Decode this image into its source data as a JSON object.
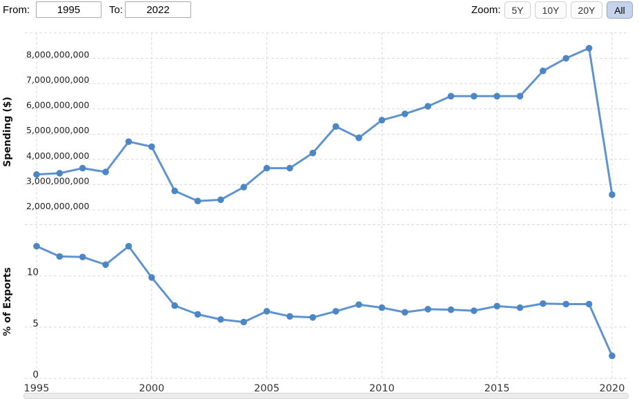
{
  "header": {
    "from_label": "From:",
    "from_value": "1995",
    "to_label": "To:",
    "to_value": "2022",
    "zoom_label": "Zoom:",
    "zoom_buttons": [
      {
        "label": "5Y",
        "active": false
      },
      {
        "label": "10Y",
        "active": false
      },
      {
        "label": "20Y",
        "active": false
      },
      {
        "label": "All",
        "active": true
      }
    ],
    "active_button_color": "#c6d3ec"
  },
  "chart_data": [
    {
      "type": "line",
      "ylabel": "Spending ($)",
      "series_name": "Spending ($)",
      "x": [
        1995,
        1996,
        1997,
        1998,
        1999,
        2000,
        2001,
        2002,
        2003,
        2004,
        2005,
        2006,
        2007,
        2008,
        2009,
        2010,
        2011,
        2012,
        2013,
        2014,
        2015,
        2016,
        2017,
        2018,
        2019,
        2020
      ],
      "values": [
        3400000000,
        3450000000,
        3650000000,
        3500000000,
        4700000000,
        4500000000,
        2750000000,
        2350000000,
        2400000000,
        2900000000,
        3650000000,
        3650000000,
        4250000000,
        5300000000,
        4850000000,
        5550000000,
        5800000000,
        6100000000,
        6500000000,
        6500000000,
        6500000000,
        6500000000,
        7500000000,
        8000000000,
        8400000000,
        2600000000
      ],
      "ygrid_values": [
        2000000000,
        3000000000,
        4000000000,
        5000000000,
        6000000000,
        7000000000,
        8000000000,
        9000000000
      ],
      "ytick_labels": [
        "2,000,000,000",
        "3,000,000,000",
        "4,000,000,000",
        "5,000,000,000",
        "6,000,000,000",
        "7,000,000,000",
        "8,000,000,000",
        ""
      ],
      "xtick_values": [
        1995,
        2000,
        2005,
        2010,
        2015,
        2020
      ],
      "xtick_labels": [
        "1995",
        "2000",
        "2005",
        "2010",
        "2015",
        "2020"
      ],
      "xlim": [
        1995,
        2020
      ],
      "ylim": [
        1700000000,
        9050000000
      ],
      "grid": "dashed",
      "legend": "none",
      "line_color": "#5e93cf",
      "marker_color": "#4c86c5"
    },
    {
      "type": "line",
      "ylabel": "% of Exports",
      "series_name": "% of Exports",
      "x": [
        1995,
        1996,
        1997,
        1998,
        1999,
        2000,
        2001,
        2002,
        2003,
        2004,
        2005,
        2006,
        2007,
        2008,
        2009,
        2010,
        2011,
        2012,
        2013,
        2014,
        2015,
        2016,
        2017,
        2018,
        2019,
        2020
      ],
      "values": [
        12.9,
        11.9,
        11.85,
        11.1,
        12.9,
        9.85,
        7.1,
        6.25,
        5.75,
        5.5,
        6.55,
        6.05,
        5.95,
        6.55,
        7.2,
        6.9,
        6.45,
        6.75,
        6.7,
        6.6,
        7.05,
        6.9,
        7.3,
        7.25,
        7.25,
        2.2
      ],
      "ygrid_values": [
        0,
        5,
        10,
        15
      ],
      "ytick_labels": [
        "0",
        "5",
        "10",
        ""
      ],
      "xtick_values": [
        1995,
        2000,
        2005,
        2010,
        2015,
        2020
      ],
      "xtick_labels": [
        "1995",
        "2000",
        "2005",
        "2010",
        "2015",
        "2020"
      ],
      "xlim": [
        1995,
        2020
      ],
      "ylim": [
        0,
        15.05
      ],
      "grid": "dashed",
      "legend": "none",
      "line_color": "#5e93cf",
      "marker_color": "#4c86c5"
    }
  ]
}
